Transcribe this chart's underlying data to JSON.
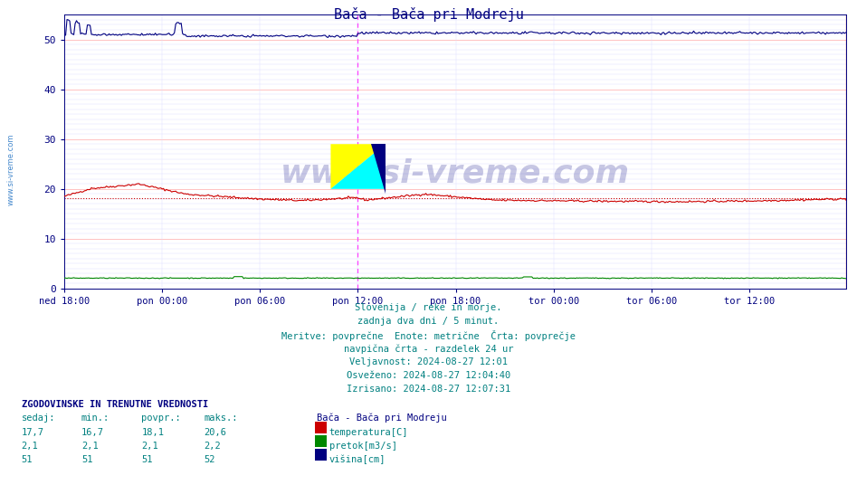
{
  "title": "Bača - Bača pri Modreju",
  "bg_color": "#ffffff",
  "plot_bg_color": "#ffffff",
  "grid_color_major": "#ffaaaa",
  "grid_color_minor": "#ddddff",
  "x_tick_labels": [
    "ned 18:00",
    "pon 00:00",
    "pon 06:00",
    "pon 12:00",
    "pon 18:00",
    "tor 00:00",
    "tor 06:00",
    "tor 12:00"
  ],
  "x_tick_positions": [
    0,
    72,
    144,
    216,
    288,
    360,
    432,
    504
  ],
  "ylim": [
    0,
    55
  ],
  "yticks": [
    0,
    10,
    20,
    30,
    40,
    50
  ],
  "total_points": 576,
  "current_time_x": 216,
  "text_lines": [
    "Slovenija / reke in morje.",
    "zadnja dva dni / 5 minut.",
    "Meritve: povprečne  Enote: metrične  Črta: povprečje",
    "navpična črta - razdelek 24 ur",
    "Veljavnost: 2024-08-27 12:01",
    "Osveženo: 2024-08-27 12:04:40",
    "Izrisano: 2024-08-27 12:07:31"
  ],
  "text_color": "#008080",
  "title_color": "#000080",
  "watermark": "www.si-vreme.com",
  "legend_title": "Bača - Bača pri Modreju",
  "legend_items": [
    {
      "label": "temperatura[C]",
      "color": "#cc0000"
    },
    {
      "label": "pretok[m3/s]",
      "color": "#008800"
    },
    {
      "label": "višina[cm]",
      "color": "#000080"
    }
  ],
  "table_header": [
    "sedaj:",
    "min.:",
    "povpr.:",
    "maks.:"
  ],
  "table_data": [
    [
      "17,7",
      "16,7",
      "18,1",
      "20,6"
    ],
    [
      "2,1",
      "2,1",
      "2,1",
      "2,2"
    ],
    [
      "51",
      "51",
      "51",
      "52"
    ]
  ],
  "temp_avg": 18.1,
  "flow_val": 2.1,
  "height_val": 51.0,
  "axis_label_color": "#000080",
  "sidebar_color": "#4488cc"
}
